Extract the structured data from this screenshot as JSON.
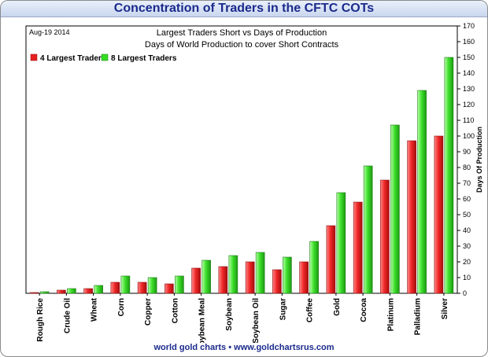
{
  "title": "Concentration of Traders in the CFTC COTs",
  "footer": "world gold charts • www.goldchartsrus.com",
  "chart_data": {
    "type": "bar",
    "subtitle1": "Largest Traders Short vs Days of Production",
    "subtitle2": "Days of World Production to cover Short Contracts",
    "date_label": "Aug-19 2014",
    "ylabel": "Days Of Production",
    "ylim": [
      0,
      170
    ],
    "yticks": [
      0,
      10,
      20,
      30,
      40,
      50,
      60,
      70,
      80,
      90,
      100,
      110,
      120,
      130,
      140,
      150,
      160,
      170
    ],
    "grid": false,
    "legend_position": "top-left",
    "categories": [
      "Rough Rice",
      "Crude Oil",
      "Wheat",
      "Corn",
      "Copper",
      "Cotton",
      "Soybean Meal",
      "Soybean",
      "Soybean Oil",
      "Sugar",
      "Coffee",
      "Gold",
      "Cocoa",
      "Platinum",
      "Palladium",
      "Silver"
    ],
    "series": [
      {
        "name": "4 Largest Traders",
        "color": "#e82020",
        "values": [
          0.5,
          2,
          3,
          7,
          7,
          6,
          16,
          17,
          20,
          15,
          20,
          43,
          58,
          72,
          97,
          100
        ]
      },
      {
        "name": "8 Largest Traders",
        "color": "#33dd22",
        "values": [
          1,
          3,
          5,
          11,
          10,
          11,
          21,
          24,
          26,
          23,
          33,
          64,
          81,
          107,
          129,
          150
        ]
      }
    ]
  }
}
